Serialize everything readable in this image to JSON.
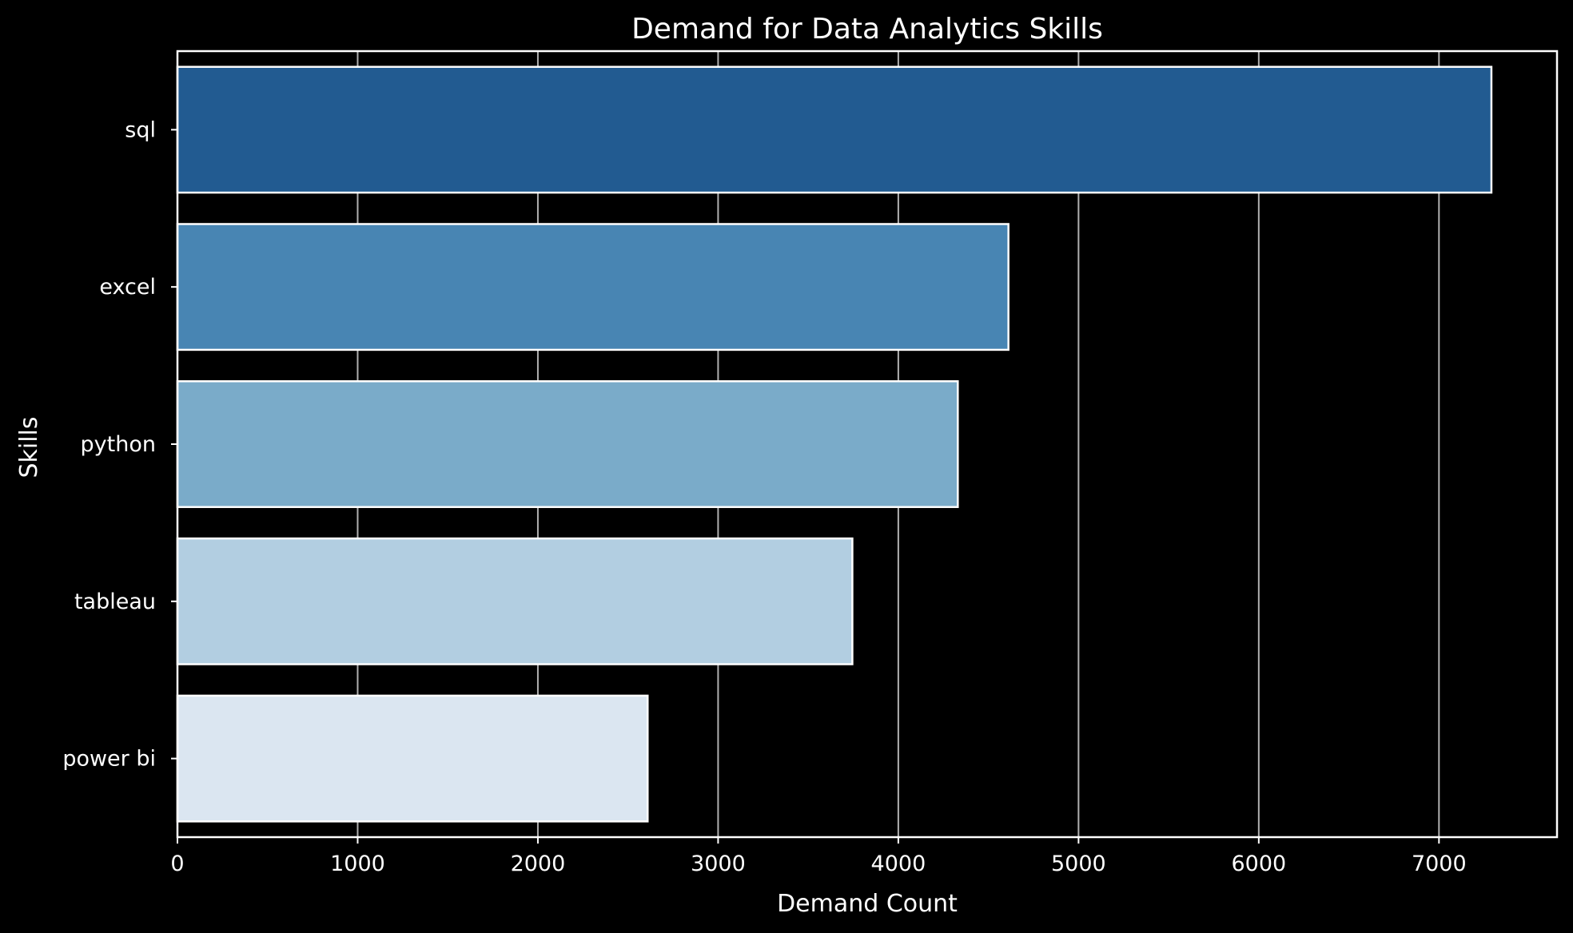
{
  "chart_data": {
    "type": "bar",
    "orientation": "horizontal",
    "title": "Demand for Data Analytics Skills",
    "xlabel": "Demand Count",
    "ylabel": "Skills",
    "categories": [
      "sql",
      "excel",
      "python",
      "tableau",
      "power bi"
    ],
    "values": [
      7291,
      4611,
      4330,
      3745,
      2609
    ],
    "xlim": [
      0,
      7655
    ],
    "xticks": [
      0,
      1000,
      2000,
      3000,
      4000,
      5000,
      6000,
      7000
    ],
    "grid": "vertical",
    "legend": "none",
    "colors": {
      "background": "#000000",
      "axes_edge": "#ffffff",
      "grid": "#b0b0b0",
      "bars": [
        "#225b91",
        "#4885b3",
        "#7aabc9",
        "#b2cee1",
        "#dbe6f1"
      ],
      "bar_edge": "#ffffff"
    }
  }
}
